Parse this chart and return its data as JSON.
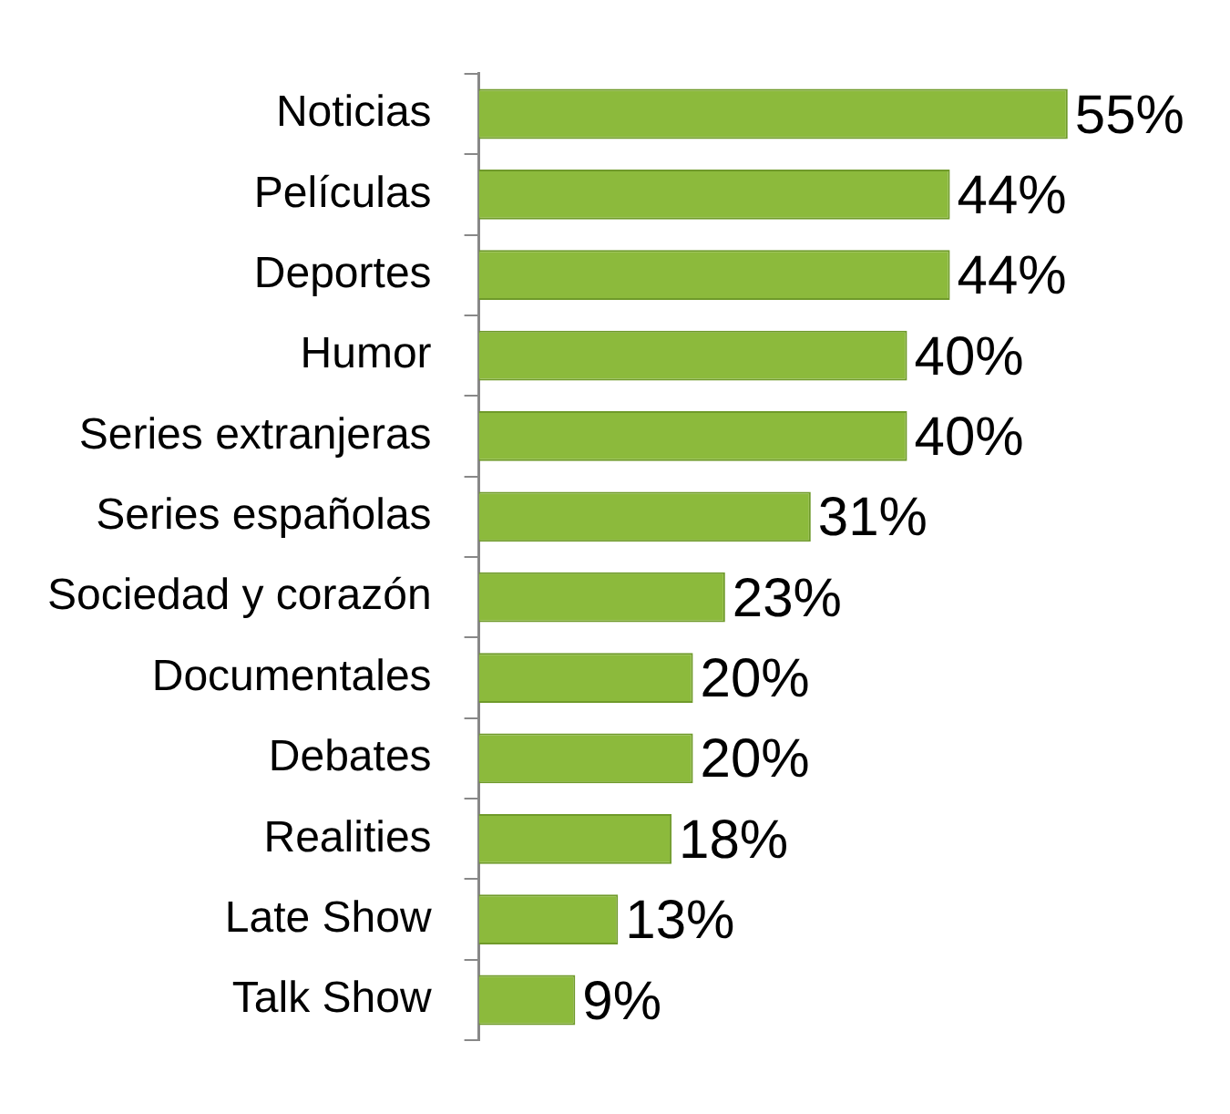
{
  "chart_data": {
    "type": "bar",
    "orientation": "horizontal",
    "categories": [
      "Noticias",
      "Películas",
      "Deportes",
      "Humor",
      "Series extranjeras",
      "Series españolas",
      "Sociedad y corazón",
      "Documentales",
      "Debates",
      "Realities",
      "Late Show",
      "Talk Show"
    ],
    "values": [
      55,
      44,
      44,
      40,
      40,
      31,
      23,
      20,
      20,
      18,
      13,
      9
    ],
    "value_labels": [
      "55%",
      "44%",
      "44%",
      "40%",
      "40%",
      "31%",
      "23%",
      "20%",
      "20%",
      "18%",
      "13%",
      "9%"
    ],
    "color": "#8cba3c",
    "legend": false,
    "tick_labels": "y"
  }
}
